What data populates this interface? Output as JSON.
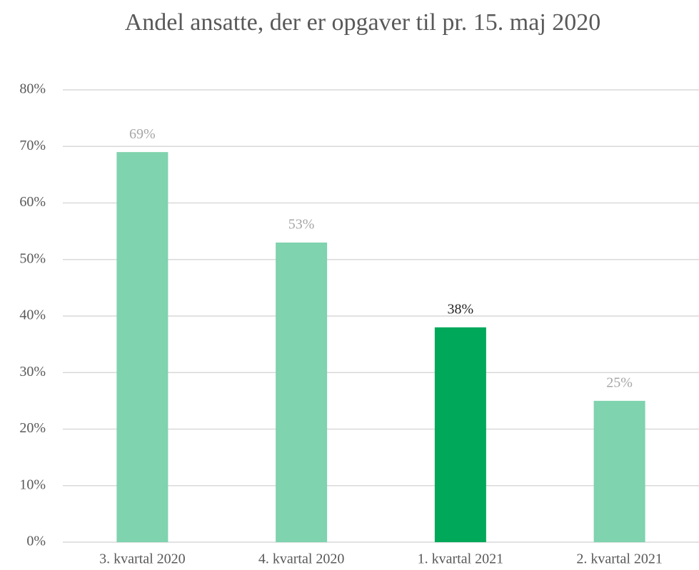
{
  "chart_data": {
    "type": "bar",
    "title": "Andel ansatte, der er opgaver til pr. 15. maj 2020",
    "categories": [
      "3. kvartal 2020",
      "4. kvartal 2020",
      "1. kvartal 2021",
      "2. kvartal 2021"
    ],
    "values": [
      69,
      53,
      38,
      25
    ],
    "value_labels": [
      "69%",
      "53%",
      "38%",
      "25%"
    ],
    "colors": [
      "#7fd3ae",
      "#7fd3ae",
      "#00a85a",
      "#7fd3ae"
    ],
    "label_colors": [
      "#a6a6a6",
      "#a6a6a6",
      "#262626",
      "#a6a6a6"
    ],
    "ylim": [
      0,
      80
    ],
    "yticks": [
      {
        "value": 0,
        "label": "0%"
      },
      {
        "value": 10,
        "label": "10%"
      },
      {
        "value": 20,
        "label": "20%"
      },
      {
        "value": 30,
        "label": "30%"
      },
      {
        "value": 40,
        "label": "40%"
      },
      {
        "value": 50,
        "label": "50%"
      },
      {
        "value": 60,
        "label": "60%"
      },
      {
        "value": 70,
        "label": "70%"
      },
      {
        "value": 80,
        "label": "80%"
      }
    ],
    "grid": true
  }
}
